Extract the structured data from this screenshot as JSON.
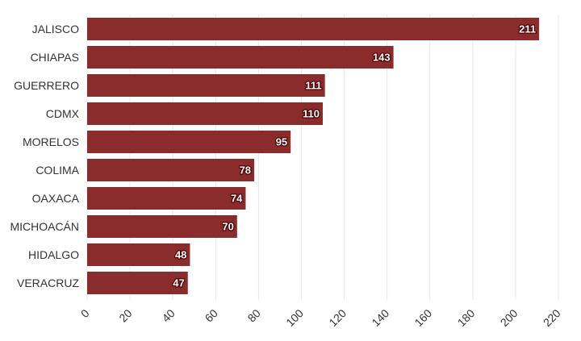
{
  "chart_data": {
    "type": "bar",
    "orientation": "horizontal",
    "categories": [
      "JALISCO",
      "CHIAPAS",
      "GUERRERO",
      "CDMX",
      "MORELOS",
      "COLIMA",
      "OAXACA",
      "MICHOACÁN",
      "HIDALGO",
      "VERACRUZ"
    ],
    "values": [
      211,
      143,
      111,
      110,
      95,
      78,
      74,
      70,
      48,
      47
    ],
    "xlim": [
      0,
      220
    ],
    "xticks": [
      0,
      20,
      40,
      60,
      80,
      100,
      120,
      140,
      160,
      180,
      200,
      220
    ],
    "grid": true,
    "bar_color": "#8b2c2c",
    "title": "",
    "xlabel": "",
    "ylabel": ""
  }
}
